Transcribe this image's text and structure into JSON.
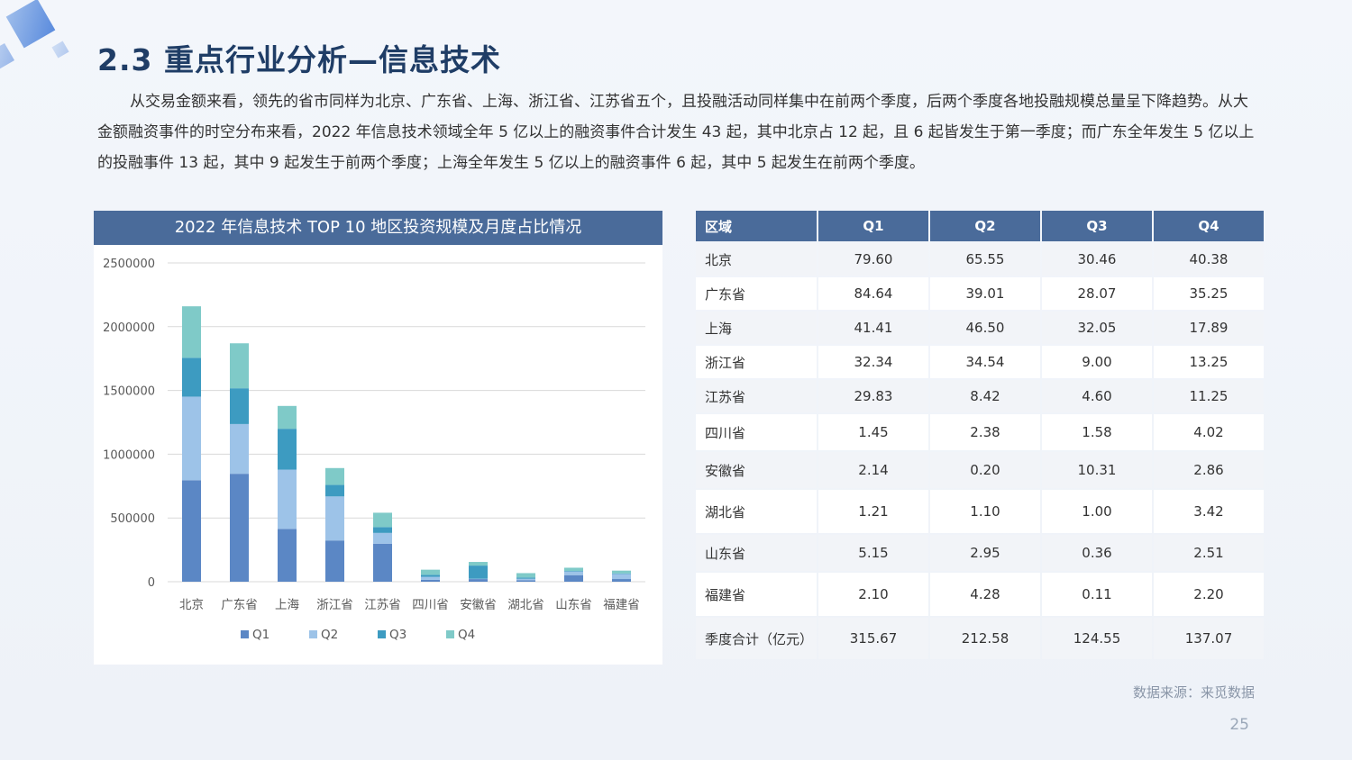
{
  "page": {
    "title": "2.3 重点行业分析—信息技术",
    "body": "从交易金额来看，领先的省市同样为北京、广东省、上海、浙江省、江苏省五个，且投融活动同样集中在前两个季度，后两个季度各地投融规模总量呈下降趋势。从大金额融资事件的时空分布来看，2022 年信息技术领域全年 5 亿以上的融资事件合计发生 43 起，其中北京占 12 起，且 6 起皆发生于第一季度；而广东全年发生 5 亿以上的投融事件 13 起，其中 9 起发生于前两个季度；上海全年发生 5 亿以上的融资事件 6 起，其中 5 起发生在前两个季度。",
    "source": "数据来源：来觅数据",
    "page_number": "25"
  },
  "chart_data": {
    "type": "bar",
    "stacked": true,
    "title": "2022 年信息技术 TOP 10 地区投资规模及月度占比情况",
    "categories": [
      "北京",
      "广东省",
      "上海",
      "浙江省",
      "江苏省",
      "四川省",
      "安徽省",
      "湖北省",
      "山东省",
      "福建省"
    ],
    "series": [
      {
        "name": "Q1",
        "color": "#5b87c5",
        "values": [
          796000,
          846400,
          414100,
          323400,
          298300,
          14500,
          21400,
          12100,
          51500,
          21000
        ]
      },
      {
        "name": "Q2",
        "color": "#9dc3e8",
        "values": [
          655500,
          390100,
          465000,
          345400,
          84200,
          23800,
          2000,
          11000,
          29500,
          42800
        ]
      },
      {
        "name": "Q3",
        "color": "#3d9bc1",
        "values": [
          304600,
          280700,
          320500,
          90000,
          46000,
          15800,
          103100,
          10000,
          3600,
          1100
        ]
      },
      {
        "name": "Q4",
        "color": "#7fcac8",
        "values": [
          403800,
          352500,
          178900,
          132500,
          112500,
          40200,
          28600,
          34200,
          25100,
          22000
        ]
      }
    ],
    "yticks": [
      "2500000",
      "2000000",
      "1500000",
      "1000000",
      "500000",
      "0"
    ],
    "ylim": [
      0,
      2500000
    ],
    "grid": true,
    "legend": "bottom"
  },
  "table": {
    "headers": [
      "区域",
      "Q1",
      "Q2",
      "Q3",
      "Q4"
    ],
    "rows": [
      [
        "北京",
        "79.60",
        "65.55",
        "30.46",
        "40.38"
      ],
      [
        "广东省",
        "84.64",
        "39.01",
        "28.07",
        "35.25"
      ],
      [
        "上海",
        "41.41",
        "46.50",
        "32.05",
        "17.89"
      ],
      [
        "浙江省",
        "32.34",
        "34.54",
        "9.00",
        "13.25"
      ],
      [
        "江苏省",
        "29.83",
        "8.42",
        "4.60",
        "11.25"
      ],
      [
        "四川省",
        "1.45",
        "2.38",
        "1.58",
        "4.02"
      ],
      [
        "安徽省",
        "2.14",
        "0.20",
        "10.31",
        "2.86"
      ],
      [
        "湖北省",
        "1.21",
        "1.10",
        "1.00",
        "3.42"
      ],
      [
        "山东省",
        "5.15",
        "2.95",
        "0.36",
        "2.51"
      ],
      [
        "福建省",
        "2.10",
        "4.28",
        "0.11",
        "2.20"
      ],
      [
        "季度合计（亿元）",
        "315.67",
        "212.58",
        "124.55",
        "137.07"
      ]
    ]
  }
}
